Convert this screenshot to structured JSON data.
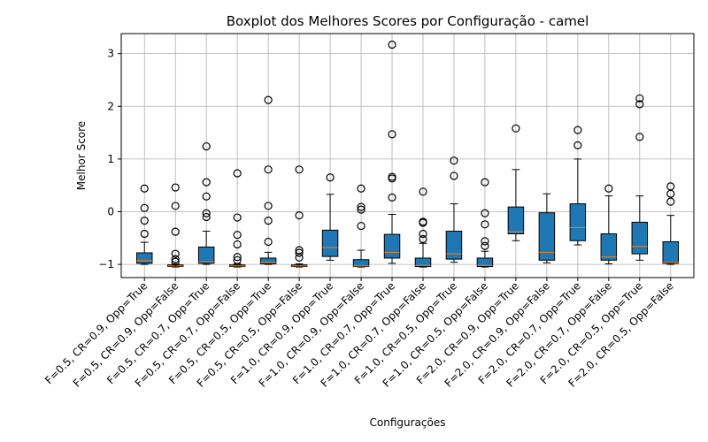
{
  "chart_data": {
    "type": "boxplot",
    "title": "Boxplot dos Melhores Scores por Configuração - camel",
    "xlabel": "Configurações",
    "ylabel": "Melhor Score",
    "ylim": [
      -1.25,
      3.38
    ],
    "yticks": [
      -1,
      0,
      1,
      2,
      3
    ],
    "ytick_labels": [
      "−1",
      "0",
      "1",
      "2",
      "3"
    ],
    "grid": true,
    "box_color": "#1f77b4",
    "median_color": "#ff7f0e",
    "categories": [
      "F=0.5, CR=0.9, Opp=True",
      "F=0.5, CR=0.9, Opp=False",
      "F=0.5, CR=0.7, Opp=True",
      "F=0.5, CR=0.7, Opp=False",
      "F=0.5, CR=0.5, Opp=True",
      "F=0.5, CR=0.5, Opp=False",
      "F=1.0, CR=0.9, Opp=True",
      "F=1.0, CR=0.9, Opp=False",
      "F=1.0, CR=0.7, Opp=True",
      "F=1.0, CR=0.7, Opp=False",
      "F=1.0, CR=0.5, Opp=True",
      "F=1.0, CR=0.5, Opp=False",
      "F=2.0, CR=0.9, Opp=True",
      "F=2.0, CR=0.9, Opp=False",
      "F=2.0, CR=0.7, Opp=True",
      "F=2.0, CR=0.7, Opp=False",
      "F=2.0, CR=0.5, Opp=True",
      "F=2.0, CR=0.5, Opp=False"
    ],
    "boxes": [
      {
        "whislo": -1.0,
        "q1": -0.98,
        "med": -0.93,
        "q3": -0.78,
        "whishi": -0.58,
        "fliers": [
          0.44,
          0.07,
          -0.17,
          -0.42
        ]
      },
      {
        "whislo": -1.05,
        "q1": -1.04,
        "med": -1.03,
        "q3": -1.01,
        "whishi": -0.99,
        "fliers": [
          0.46,
          0.11,
          -0.38,
          -0.8,
          -0.9,
          -0.95
        ]
      },
      {
        "whislo": -1.0,
        "q1": -0.98,
        "med": -0.95,
        "q3": -0.67,
        "whishi": -0.37,
        "fliers": [
          1.24,
          0.56,
          0.29,
          -0.03,
          -0.1
        ]
      },
      {
        "whislo": -1.05,
        "q1": -1.04,
        "med": -1.03,
        "q3": -1.01,
        "whishi": -0.99,
        "fliers": [
          0.73,
          -0.11,
          -0.44,
          -0.62,
          -0.86,
          -0.92
        ]
      },
      {
        "whislo": -1.0,
        "q1": -0.99,
        "med": -0.96,
        "q3": -0.88,
        "whishi": -0.77,
        "fliers": [
          2.12,
          0.8,
          0.11,
          -0.17,
          -0.57
        ]
      },
      {
        "whislo": -1.05,
        "q1": -1.04,
        "med": -1.03,
        "q3": -1.01,
        "whishi": -0.99,
        "fliers": [
          0.8,
          -0.07,
          -0.73,
          -0.78,
          -0.87
        ]
      },
      {
        "whislo": -0.92,
        "q1": -0.85,
        "med": -0.68,
        "q3": -0.35,
        "whishi": 0.33,
        "fliers": [
          0.65
        ]
      },
      {
        "whislo": -1.05,
        "q1": -1.04,
        "med": -1.03,
        "q3": -0.91,
        "whishi": -0.73,
        "fliers": [
          0.44,
          0.09,
          0.04,
          -0.27
        ]
      },
      {
        "whislo": -0.98,
        "q1": -0.88,
        "med": -0.77,
        "q3": -0.43,
        "whishi": -0.05,
        "fliers": [
          3.17,
          1.47,
          0.66,
          0.63,
          0.27
        ]
      },
      {
        "whislo": -1.05,
        "q1": -1.04,
        "med": -1.02,
        "q3": -0.88,
        "whishi": -0.6,
        "fliers": [
          0.38,
          -0.19,
          -0.21,
          -0.42,
          -0.52
        ]
      },
      {
        "whislo": -0.96,
        "q1": -0.9,
        "med": -0.8,
        "q3": -0.37,
        "whishi": 0.15,
        "fliers": [
          0.97,
          0.68
        ]
      },
      {
        "whislo": -1.05,
        "q1": -1.04,
        "med": -1.02,
        "q3": -0.88,
        "whishi": -0.75,
        "fliers": [
          0.56,
          -0.03,
          -0.24,
          -0.56,
          -0.65
        ]
      },
      {
        "whislo": -0.55,
        "q1": -0.42,
        "med": -0.38,
        "q3": 0.09,
        "whishi": 0.8,
        "fliers": [
          1.58
        ]
      },
      {
        "whislo": -0.97,
        "q1": -0.92,
        "med": -0.77,
        "q3": -0.02,
        "whishi": 0.34,
        "fliers": []
      },
      {
        "whislo": -0.63,
        "q1": -0.55,
        "med": -0.3,
        "q3": 0.15,
        "whishi": 1.0,
        "fliers": [
          1.55,
          1.26
        ]
      },
      {
        "whislo": -0.99,
        "q1": -0.92,
        "med": -0.86,
        "q3": -0.42,
        "whishi": 0.3,
        "fliers": [
          0.44
        ]
      },
      {
        "whislo": -0.92,
        "q1": -0.8,
        "med": -0.66,
        "q3": -0.2,
        "whishi": 0.3,
        "fliers": [
          2.15,
          2.04,
          1.42
        ]
      },
      {
        "whislo": -1.0,
        "q1": -0.98,
        "med": -0.96,
        "q3": -0.57,
        "whishi": -0.07,
        "fliers": [
          0.48,
          0.34,
          0.19
        ]
      }
    ]
  }
}
